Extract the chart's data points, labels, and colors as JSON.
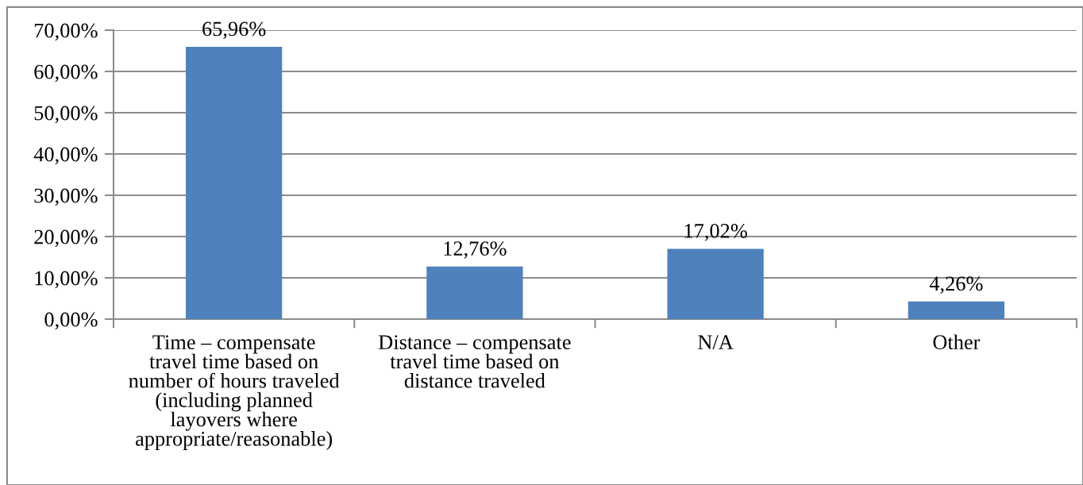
{
  "chart_data": {
    "type": "bar",
    "categories": [
      "Time – compensate\ntravel time based on\nnumber of hours traveled\n(including planned\nlayovers where\nappropriate/reasonable)",
      "Distance – compensate\ntravel time based on\ndistance traveled",
      "N/A",
      "Other"
    ],
    "values": [
      65.96,
      12.76,
      17.02,
      4.26
    ],
    "color": "#4f81bd",
    "value_labels": [
      "65,96%",
      "12,76%",
      "17,02%",
      "4,26%"
    ],
    "ylim": [
      0,
      70
    ],
    "yticks": [
      {
        "value": 0,
        "label": "0,00%"
      },
      {
        "value": 10,
        "label": "10,00%"
      },
      {
        "value": 20,
        "label": "20,00%"
      },
      {
        "value": 30,
        "label": "30,00%"
      },
      {
        "value": 40,
        "label": "40,00%"
      },
      {
        "value": 50,
        "label": "50,00%"
      },
      {
        "value": 60,
        "label": "60,00%"
      },
      {
        "value": 70,
        "label": "70,00%"
      }
    ],
    "grid": "y"
  }
}
